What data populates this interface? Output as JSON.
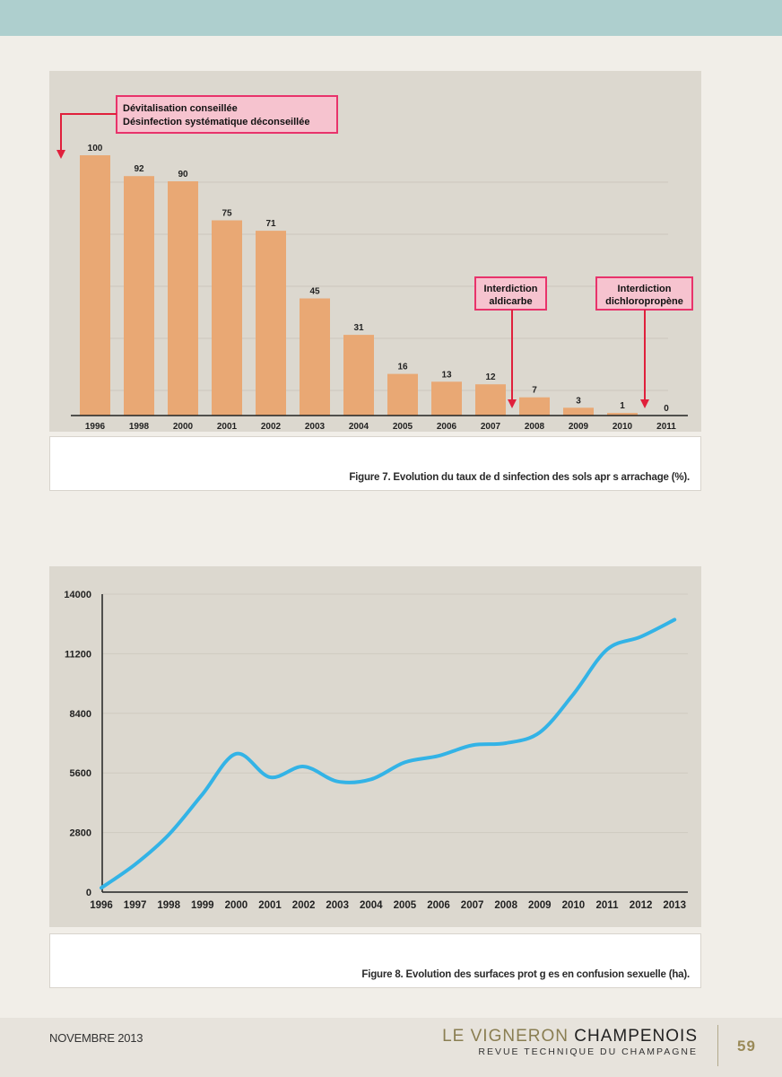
{
  "chart_data": [
    {
      "type": "bar",
      "categories": [
        "1996",
        "1998",
        "2000",
        "2001",
        "2002",
        "2003",
        "2004",
        "2005",
        "2006",
        "2007",
        "2008",
        "2009",
        "2010",
        "2011"
      ],
      "values": [
        100,
        92,
        90,
        75,
        71,
        45,
        31,
        16,
        13,
        12,
        7,
        3,
        1,
        0
      ],
      "ylim": [
        0,
        120
      ],
      "grid": true,
      "bar_color": "#e9a874",
      "annotations": [
        {
          "lines": [
            "Dévitalisation conseillée",
            "Désinfection systématique déconseillée"
          ],
          "category": "1996"
        },
        {
          "lines": [
            "Interdiction",
            "aldicarbe"
          ],
          "category": "2008"
        },
        {
          "lines": [
            "Interdiction",
            "dichloropropène"
          ],
          "category": "2011"
        }
      ],
      "annotation_border": "#e8336b",
      "annotation_fill": "#f6c3cf",
      "arrow_color": "#e0203c",
      "caption": "Figure 7. Evolution du taux de d sinfection des sols apr s arrachage (%)."
    },
    {
      "type": "line",
      "x": [
        "1996",
        "1997",
        "1998",
        "1999",
        "2000",
        "2001",
        "2002",
        "2003",
        "2004",
        "2005",
        "2006",
        "2007",
        "2008",
        "2009",
        "2010",
        "2011",
        "2012",
        "2013"
      ],
      "y": [
        200,
        1300,
        2700,
        4600,
        6500,
        5400,
        5900,
        5200,
        5300,
        6100,
        6400,
        6900,
        7000,
        7500,
        9300,
        11400,
        12000,
        12800
      ],
      "yticks": [
        0,
        2800,
        5600,
        8400,
        11200,
        14000
      ],
      "ylim": [
        0,
        14000
      ],
      "grid": true,
      "line_color": "#33b3e6",
      "caption": "Figure 8. Evolution des surfaces prot g es en confusion sexuelle (ha)."
    }
  ],
  "footer": {
    "month": "NOVEMBRE 2013",
    "brand_light": "LE VIGNERON ",
    "brand_bold": "CHAMPENOIS",
    "brand_sub": "REVUE TECHNIQUE DU CHAMPAGNE",
    "page_number": "59"
  },
  "colors": {
    "top_band": "#aecfce",
    "page_bg": "#f1eee8",
    "panel_bg": "#dcd8cf"
  }
}
